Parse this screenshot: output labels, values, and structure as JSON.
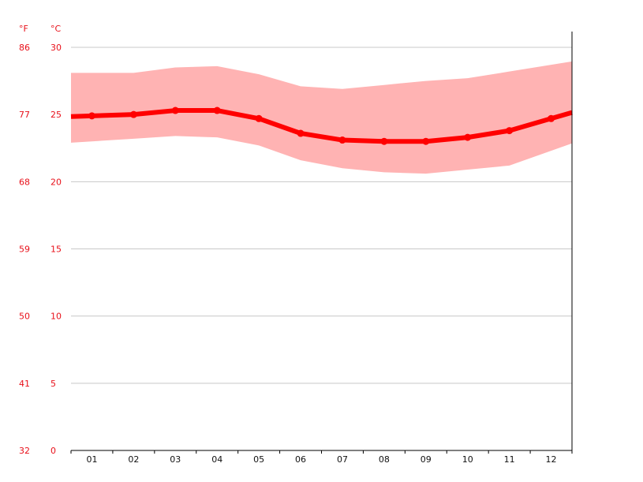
{
  "chart_data": {
    "type": "line",
    "unit_labels": {
      "fahrenheit": "°F",
      "celsius": "°C"
    },
    "categories": [
      "01",
      "02",
      "03",
      "04",
      "05",
      "06",
      "07",
      "08",
      "09",
      "10",
      "11",
      "12"
    ],
    "series": [
      {
        "values": [
          24.9,
          25.0,
          25.3,
          25.3,
          24.7,
          23.6,
          23.1,
          23.0,
          23.0,
          23.3,
          23.8,
          24.7
        ]
      }
    ],
    "band": {
      "upper": [
        28.1,
        28.1,
        28.5,
        28.6,
        28.0,
        27.1,
        26.9,
        27.2,
        27.5,
        27.7,
        28.2,
        28.7
      ],
      "lower": [
        23.0,
        23.2,
        23.4,
        23.3,
        22.7,
        21.6,
        21.0,
        20.7,
        20.6,
        20.9,
        21.2,
        22.3
      ]
    },
    "ylim": [
      0,
      30
    ],
    "yticks_celsius": [
      "0",
      "5",
      "10",
      "15",
      "20",
      "25",
      "30"
    ],
    "yticks_fahrenheit": [
      "32",
      "41",
      "50",
      "59",
      "68",
      "77",
      "86"
    ],
    "grid": true,
    "colors": {
      "line": "#ff0000",
      "band": "#ffb3b3",
      "tick_text": "#e8101a"
    }
  }
}
